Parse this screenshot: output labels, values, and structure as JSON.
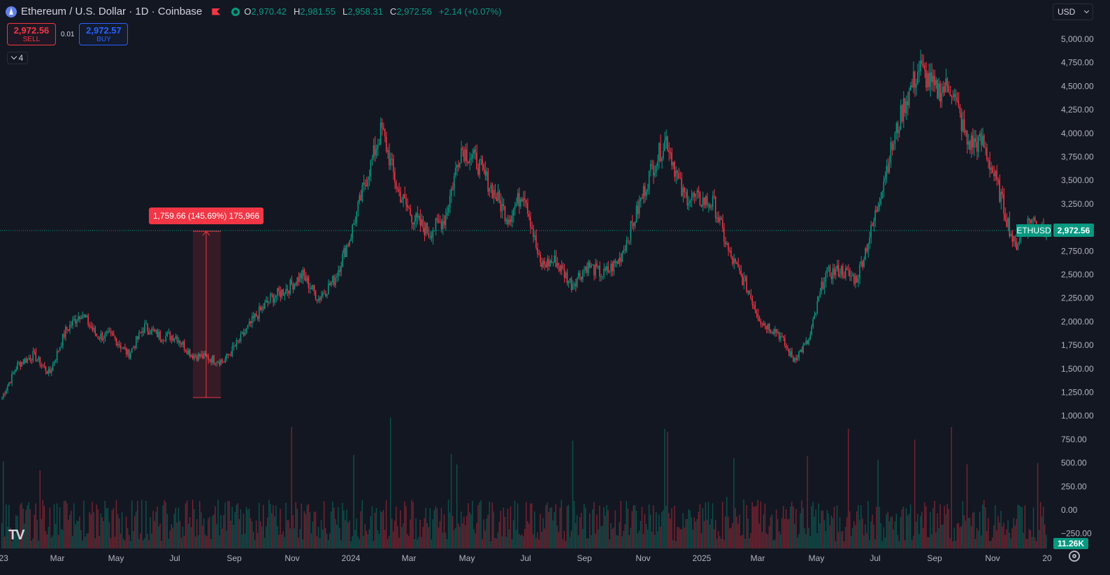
{
  "header": {
    "title": "Ethereum / U.S. Dollar · 1D · Coinbase",
    "icons": [
      "ethereum-logo",
      "flag-icon",
      "market-status-dot"
    ],
    "ohlc": {
      "o_label": "O",
      "o": "2,970.42",
      "h_label": "H",
      "h": "2,981.55",
      "l_label": "L",
      "l": "2,958.31",
      "c_label": "C",
      "c": "2,972.56",
      "change": "+2.14 (+0.07%)"
    }
  },
  "trade": {
    "sell_price": "2,972.56",
    "sell_label": "SELL",
    "spread": "0.01",
    "buy_price": "2,972.57",
    "buy_label": "BUY"
  },
  "indicators_toggle": {
    "count": "4"
  },
  "currency": {
    "label": "USD"
  },
  "measure": {
    "label": "1,759.66 (145.69%) 175,966"
  },
  "price_label": {
    "symbol": "ETHUSD",
    "price": "2,972.56"
  },
  "volume_label": "11.26K",
  "colors": {
    "background": "#131722",
    "up": "#089981",
    "down": "#f23645",
    "grid": "#1e222d",
    "axis_text": "#b2b5be"
  },
  "chart_data": {
    "type": "candlestick",
    "price_axis_ticks": [
      "5,000.00",
      "4,750.00",
      "4,500.00",
      "4,250.00",
      "4,000.00",
      "3,750.00",
      "3,500.00",
      "3,250.00",
      "2,750.00",
      "2,500.00",
      "2,250.00",
      "2,000.00",
      "1,750.00",
      "1,500.00",
      "1,250.00",
      "1,000.00",
      "750.00",
      "500.00",
      "250.00",
      "0.00",
      "−250.00"
    ],
    "time_axis_ticks": [
      "'23",
      "Mar",
      "May",
      "Jul",
      "Sep",
      "Nov",
      "2024",
      "Mar",
      "May",
      "Jul",
      "Sep",
      "Nov",
      "2025",
      "Mar",
      "May",
      "Jul",
      "Sep",
      "Nov",
      "20"
    ],
    "ylim": [
      1200,
      5000
    ],
    "current_price": 2972.56,
    "close_series": [
      {
        "x": "2023-01",
        "y": 1200
      },
      {
        "x": "2023-01",
        "y": 1550
      },
      {
        "x": "2023-02",
        "y": 1650
      },
      {
        "x": "2023-03",
        "y": 1450
      },
      {
        "x": "2023-04",
        "y": 1900
      },
      {
        "x": "2023-04",
        "y": 2100
      },
      {
        "x": "2023-05",
        "y": 1850
      },
      {
        "x": "2023-06",
        "y": 1850
      },
      {
        "x": "2023-06",
        "y": 1650
      },
      {
        "x": "2023-07",
        "y": 1950
      },
      {
        "x": "2023-07",
        "y": 1850
      },
      {
        "x": "2023-08",
        "y": 1850
      },
      {
        "x": "2023-08",
        "y": 1650
      },
      {
        "x": "2023-09",
        "y": 1620
      },
      {
        "x": "2023-10",
        "y": 1580
      },
      {
        "x": "2023-10",
        "y": 1800
      },
      {
        "x": "2023-11",
        "y": 2050
      },
      {
        "x": "2023-12",
        "y": 2250
      },
      {
        "x": "2023-12",
        "y": 2350
      },
      {
        "x": "2024-01",
        "y": 2500
      },
      {
        "x": "2024-01",
        "y": 2250
      },
      {
        "x": "2024-02",
        "y": 2450
      },
      {
        "x": "2024-02",
        "y": 2900
      },
      {
        "x": "2024-03",
        "y": 3500
      },
      {
        "x": "2024-03",
        "y": 4050
      },
      {
        "x": "2024-04",
        "y": 3400
      },
      {
        "x": "2024-04",
        "y": 3100
      },
      {
        "x": "2024-05",
        "y": 2950
      },
      {
        "x": "2024-05",
        "y": 3100
      },
      {
        "x": "2024-05",
        "y": 3850
      },
      {
        "x": "2024-06",
        "y": 3700
      },
      {
        "x": "2024-06",
        "y": 3400
      },
      {
        "x": "2024-07",
        "y": 3100
      },
      {
        "x": "2024-07",
        "y": 3400
      },
      {
        "x": "2024-08",
        "y": 2600
      },
      {
        "x": "2024-08",
        "y": 2650
      },
      {
        "x": "2024-09",
        "y": 2400
      },
      {
        "x": "2024-09",
        "y": 2600
      },
      {
        "x": "2024-10",
        "y": 2500
      },
      {
        "x": "2024-10",
        "y": 2650
      },
      {
        "x": "2024-11",
        "y": 3100
      },
      {
        "x": "2024-11",
        "y": 3600
      },
      {
        "x": "2024-12",
        "y": 3950
      },
      {
        "x": "2024-12",
        "y": 3350
      },
      {
        "x": "2025-01",
        "y": 3300
      },
      {
        "x": "2025-01",
        "y": 3250
      },
      {
        "x": "2025-02",
        "y": 2700
      },
      {
        "x": "2025-02",
        "y": 2400
      },
      {
        "x": "2025-03",
        "y": 2000
      },
      {
        "x": "2025-03",
        "y": 1900
      },
      {
        "x": "2025-04",
        "y": 1600
      },
      {
        "x": "2025-04",
        "y": 1800
      },
      {
        "x": "2025-05",
        "y": 2500
      },
      {
        "x": "2025-06",
        "y": 2550
      },
      {
        "x": "2025-06",
        "y": 2450
      },
      {
        "x": "2025-07",
        "y": 3000
      },
      {
        "x": "2025-07",
        "y": 3700
      },
      {
        "x": "2025-08",
        "y": 4300
      },
      {
        "x": "2025-08",
        "y": 4700
      },
      {
        "x": "2025-09",
        "y": 4450
      },
      {
        "x": "2025-09",
        "y": 4500
      },
      {
        "x": "2025-10",
        "y": 3900
      },
      {
        "x": "2025-10",
        "y": 3900
      },
      {
        "x": "2025-11",
        "y": 3400
      },
      {
        "x": "2025-11",
        "y": 2800
      },
      {
        "x": "2025-12",
        "y": 3100
      },
      {
        "x": "2025-12",
        "y": 2972
      }
    ]
  }
}
